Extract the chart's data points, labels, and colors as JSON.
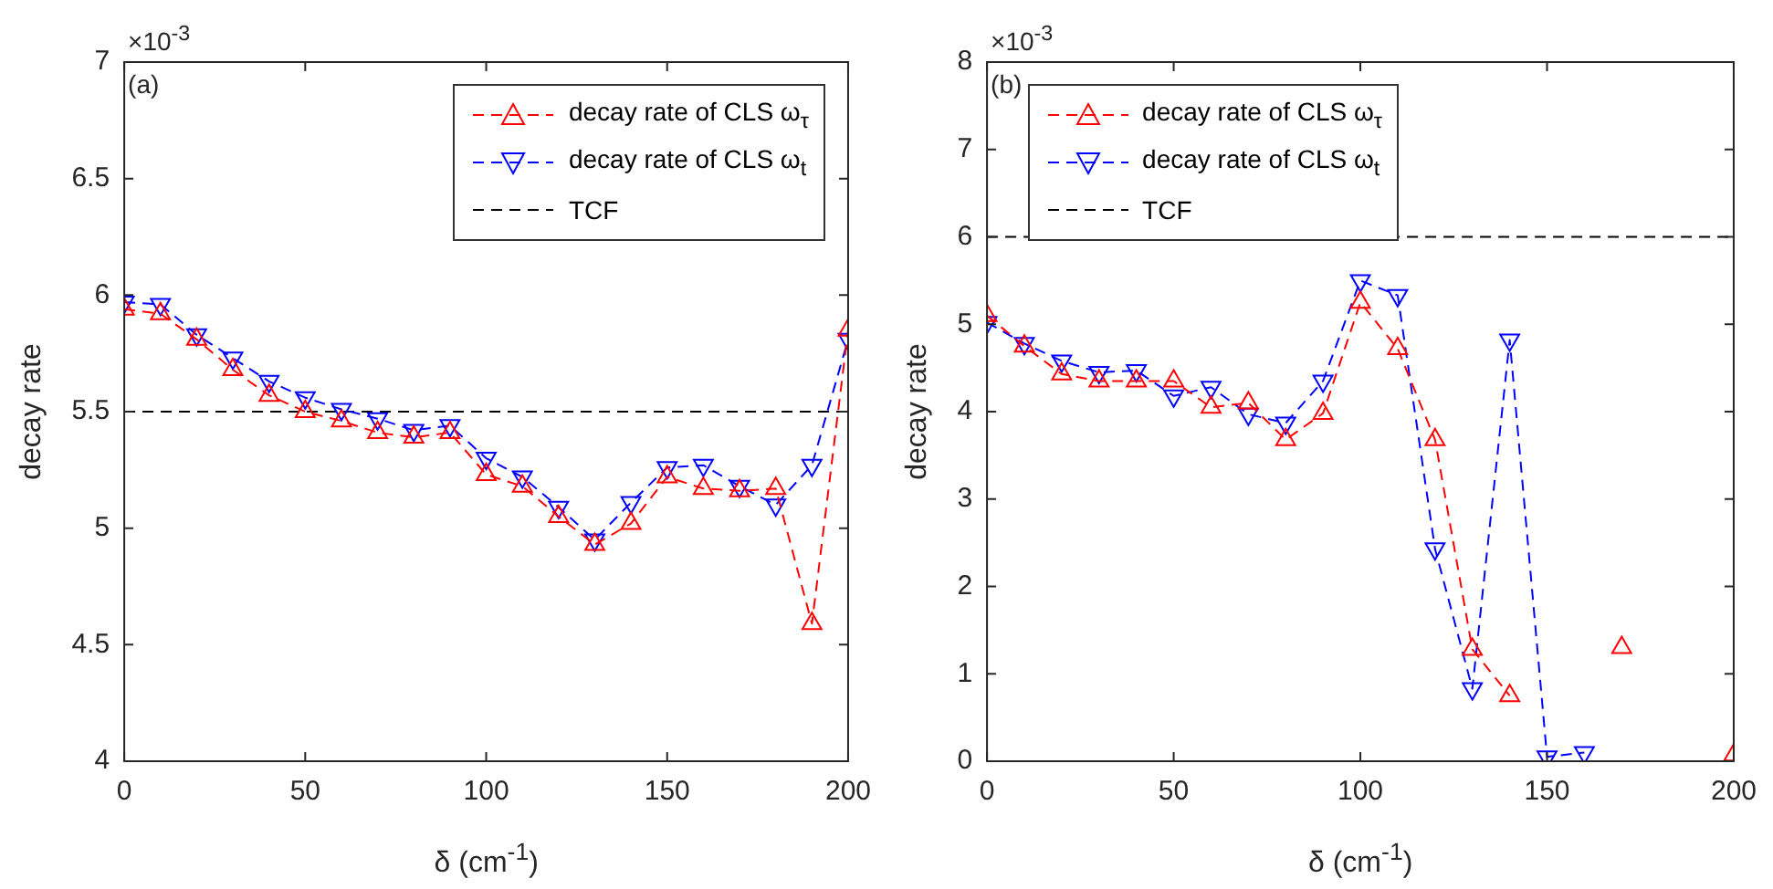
{
  "chart_data": [
    {
      "type": "line",
      "xlabel": "δ (cm$^{-1}$)",
      "ylabel": "decay rate",
      "annotations": [
        "(a)",
        "×10$^{-3}$"
      ],
      "x": [
        0,
        10,
        20,
        30,
        40,
        50,
        60,
        70,
        80,
        90,
        100,
        110,
        120,
        130,
        140,
        150,
        160,
        170,
        180,
        190,
        200
      ],
      "series": [
        {
          "name": "decay rate of CLS ω$_{τ}$",
          "color": "#ff0000",
          "marker": "triangle",
          "values": [
            5.94,
            5.92,
            5.81,
            5.68,
            5.57,
            5.5,
            5.46,
            5.41,
            5.39,
            5.41,
            5.23,
            5.18,
            5.05,
            4.93,
            5.02,
            5.22,
            5.17,
            5.16,
            5.17,
            4.59,
            5.85
          ]
        },
        {
          "name": "decay rate of CLS ω$_{t}$",
          "color": "#0000ff",
          "marker": "triangle-down",
          "values": [
            5.97,
            5.96,
            5.83,
            5.73,
            5.63,
            5.56,
            5.51,
            5.47,
            5.42,
            5.44,
            5.3,
            5.22,
            5.09,
            4.95,
            5.11,
            5.26,
            5.27,
            5.18,
            5.1,
            5.27,
            5.81
          ]
        }
      ],
      "ref_lines": [
        {
          "axis": "y",
          "value": 5.5,
          "label": "TCF",
          "color": "#000000",
          "line_style": "dashed"
        }
      ],
      "line_style": "dashed",
      "legend": "top right",
      "grid": false,
      "xlim": [
        0,
        200
      ],
      "xticks": [
        0,
        50,
        100,
        150,
        200
      ],
      "ylim": [
        4,
        7
      ],
      "yticks": [
        4,
        4.5,
        5,
        5.5,
        6,
        6.5,
        7
      ]
    },
    {
      "type": "line",
      "xlabel": "δ (cm$^{-1}$)",
      "ylabel": "decay rate",
      "annotations": [
        "(b)",
        "×10$^{-3}$"
      ],
      "x": [
        0,
        10,
        20,
        30,
        40,
        50,
        60,
        70,
        80,
        90,
        100,
        110,
        120,
        130,
        140,
        150,
        160,
        170,
        180,
        190,
        200
      ],
      "series": [
        {
          "name": "decay rate of CLS ω$_{τ}$",
          "color": "#ff0000",
          "marker": "triangle",
          "values": [
            5.1,
            4.75,
            4.43,
            4.35,
            4.35,
            4.35,
            4.05,
            4.1,
            3.68,
            3.98,
            5.25,
            4.72,
            3.68,
            1.28,
            0.75,
            null,
            null,
            1.3,
            null,
            null,
            0.07
          ]
        },
        {
          "name": "decay rate of CLS ω$_{t}$",
          "color": "#0000ff",
          "marker": "triangle-down",
          "values": [
            5.02,
            4.78,
            4.58,
            4.45,
            4.47,
            4.18,
            4.28,
            3.97,
            3.87,
            4.35,
            5.5,
            5.33,
            2.43,
            0.83,
            4.82,
            0.05,
            0.1,
            null,
            null,
            null,
            null
          ]
        }
      ],
      "ref_lines": [
        {
          "axis": "y",
          "value": 6,
          "label": "TCF",
          "color": "#000000",
          "line_style": "dashed"
        }
      ],
      "line_style": "dashed",
      "legend": "top left",
      "grid": false,
      "xlim": [
        0,
        200
      ],
      "xticks": [
        0,
        50,
        100,
        150,
        200
      ],
      "ylim": [
        0,
        8
      ],
      "yticks": [
        0,
        1,
        2,
        3,
        4,
        5,
        6,
        7,
        8
      ]
    }
  ]
}
